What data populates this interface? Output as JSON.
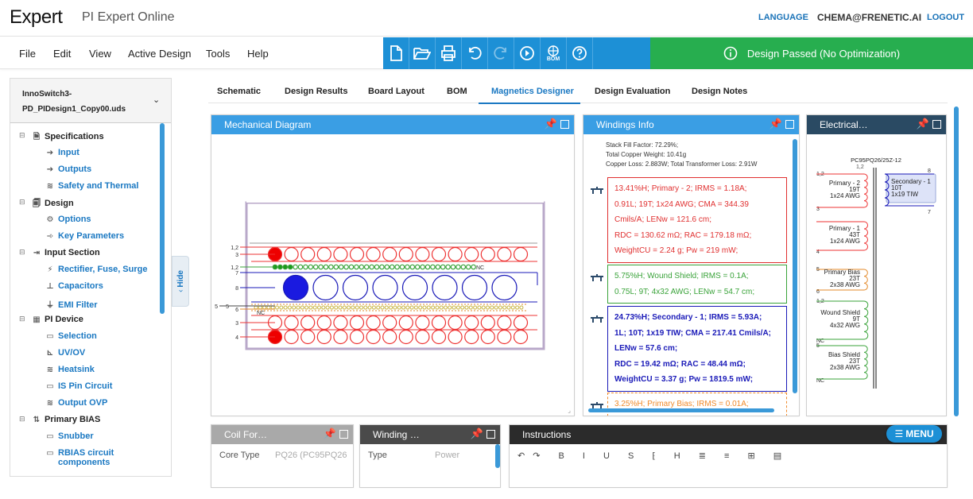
{
  "header": {
    "logo": "Expert",
    "app_title": "PI Expert Online",
    "language": "LANGUAGE",
    "user": "CHEMA@FRENETIC.AI",
    "logout": "LOGOUT"
  },
  "menubar": {
    "items": [
      "File",
      "Edit",
      "View",
      "Active Design",
      "Tools",
      "Help"
    ],
    "toolbar": [
      "new-file-icon",
      "open-folder-icon",
      "print-icon",
      "undo-icon",
      "redo-icon",
      "run-icon",
      "bom-icon",
      "help-icon"
    ],
    "bom_label": "BOM",
    "status": "Design Passed (No Optimization)",
    "status_color": "#27ae4f",
    "accent": "#1d90d6"
  },
  "sidebar": {
    "design_name_1": "InnoSwitch3-",
    "design_name_2": "PD_PIDesign1_Copy00.uds",
    "hide_label": "Hide",
    "tree": [
      {
        "label": "Specifications",
        "type": "group"
      },
      {
        "label": "Input",
        "type": "child"
      },
      {
        "label": "Outputs",
        "type": "child"
      },
      {
        "label": "Safety and Thermal",
        "type": "child"
      },
      {
        "label": "Design",
        "type": "group"
      },
      {
        "label": "Options",
        "type": "child"
      },
      {
        "label": "Key Parameters",
        "type": "child"
      },
      {
        "label": "Input Section",
        "type": "group"
      },
      {
        "label": "Rectifier, Fuse, Surge",
        "type": "child"
      },
      {
        "label": "Capacitors",
        "type": "child"
      },
      {
        "label": "EMI Filter",
        "type": "child"
      },
      {
        "label": "PI Device",
        "type": "group"
      },
      {
        "label": "Selection",
        "type": "child"
      },
      {
        "label": "UV/OV",
        "type": "child"
      },
      {
        "label": "Heatsink",
        "type": "child"
      },
      {
        "label": "IS Pin Circuit",
        "type": "child"
      },
      {
        "label": "Output OVP",
        "type": "child"
      },
      {
        "label": "Primary BIAS",
        "type": "group"
      },
      {
        "label": "Snubber",
        "type": "child"
      },
      {
        "label": "RBIAS circuit",
        "type": "child"
      },
      {
        "label": "components",
        "type": "child"
      }
    ]
  },
  "tabs": [
    {
      "label": "Schematic"
    },
    {
      "label": "Design Results"
    },
    {
      "label": "Board Layout"
    },
    {
      "label": "BOM"
    },
    {
      "label": "Magnetics Designer"
    },
    {
      "label": "Design Evaluation"
    },
    {
      "label": "Design Notes"
    }
  ],
  "panels": {
    "mech": {
      "title": "Mechanical Diagram",
      "pins": [
        "1,2",
        "3",
        "1,2",
        "7",
        "8",
        "5",
        "5",
        "6",
        "NC",
        "3",
        "4"
      ],
      "nc": "NC"
    },
    "windings": {
      "title": "Windings Info",
      "summary": [
        "Stack Fill Factor: 72.29%;",
        "Total Copper Weight: 10.41g",
        "Copper Loss: 2.883W; Total Transformer Loss: 2.91W"
      ],
      "boxes": [
        {
          "lines": [
            "13.41%H; Primary - 2; IRMS = 1.18A;",
            "0.91L; 19T; 1x24 AWG; CMA = 344.39",
            "Cmils/A; LENw = 121.6 cm;",
            "RDC = 130.62 mΩ; RAC = 179.18 mΩ;",
            "WeightCU = 2.24 g; Pw = 219 mW;"
          ],
          "color": "#e03030"
        },
        {
          "lines": [
            "5.75%H; Wound Shield; IRMS = 0.1A;",
            "0.75L; 9T; 4x32 AWG; LENw = 54.7 cm;"
          ],
          "color": "#3aa33a"
        },
        {
          "lines": [
            "24.73%H; Secondary - 1; IRMS = 5.93A;",
            "1L; 10T; 1x19 TIW; CMA = 217.41 Cmils/A;",
            "LENw = 57.6 cm;",
            "RDC = 19.42 mΩ; RAC = 48.44 mΩ;",
            "WeightCU = 3.37 g; Pw = 1819.5 mW;"
          ],
          "color": "#1a1ab8"
        },
        {
          "lines": [
            "3.25%H; Primary Bias; IRMS = 0.01A;"
          ],
          "color": "#f08a2a"
        }
      ]
    },
    "electrical": {
      "title": "Electrical…",
      "core": "PC95PQ26/25Z-12",
      "top_pins": "1,2",
      "windings": [
        {
          "pin_a": "1,2",
          "pin_b": "3",
          "name": "Primary - 2",
          "turns": "19T",
          "wire": "1x24 AWG"
        },
        {
          "pin_a": "",
          "pin_b": "4",
          "name": "Primary - 1",
          "turns": "43T",
          "wire": "1x24 AWG"
        },
        {
          "pin_a": "5",
          "pin_b": "6",
          "name": "Primary Bias",
          "turns": "23T",
          "wire": "2x38 AWG"
        },
        {
          "pin_a": "1,2",
          "pin_b": "NC",
          "name": "Wound Shield",
          "turns": "9T",
          "wire": "4x32 AWG"
        },
        {
          "pin_a": "5",
          "pin_b": "NC",
          "name": "Bias Shield",
          "turns": "23T",
          "wire": "2x38 AWG"
        }
      ],
      "secondary": {
        "name": "Secondary - 1",
        "turns": "10T",
        "wire": "1x19 TIW",
        "pin_top": "8",
        "pin_bot": "7"
      }
    },
    "coil": {
      "title": "Coil For…",
      "row_label": "Core Type",
      "row_value": "PQ26 (PC95PQ26"
    },
    "winding": {
      "title": "Winding …",
      "row_label": "Type",
      "row_value": "Power"
    },
    "instructions": {
      "title": "Instructions"
    }
  },
  "menu_button": "MENU"
}
